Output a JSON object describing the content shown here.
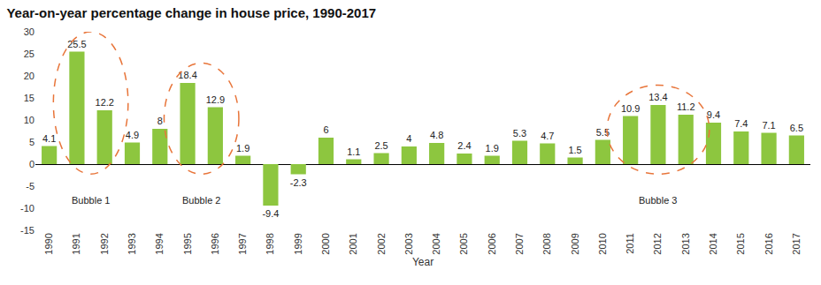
{
  "chart_data": {
    "type": "bar",
    "title": "Year-on-year percentage change in house price, 1990-2017",
    "x_label": "Year",
    "categories": [
      "1990",
      "1991",
      "1992",
      "1993",
      "1994",
      "1995",
      "1996",
      "1997",
      "1998",
      "1999",
      "2000",
      "2001",
      "2002",
      "2003",
      "2004",
      "2005",
      "2006",
      "2007",
      "2008",
      "2009",
      "2010",
      "2011",
      "2012",
      "2013",
      "2014",
      "2015",
      "2016",
      "2017"
    ],
    "values": [
      4.1,
      25.5,
      12.2,
      4.9,
      8,
      18.4,
      12.9,
      1.9,
      -9.4,
      -2.3,
      6,
      1.1,
      2.5,
      4,
      4.8,
      2.4,
      1.9,
      5.3,
      4.7,
      1.5,
      5.5,
      10.9,
      13.4,
      11.2,
      9.4,
      7.4,
      7.1,
      6.5
    ],
    "color": "#8dc63f",
    "ylim": [
      -15,
      30
    ],
    "yticks": [
      -15,
      -10,
      -5,
      0,
      5,
      10,
      15,
      20,
      25,
      30
    ],
    "grid": false,
    "data_labels": true,
    "annotations": [
      {
        "text": "Bubble 1",
        "categories": [
          "1991",
          "1992"
        ]
      },
      {
        "text": "Bubble 2",
        "categories": [
          "1995",
          "1996"
        ]
      },
      {
        "text": "Bubble 3",
        "categories": [
          "2011",
          "2012",
          "2013"
        ]
      }
    ]
  }
}
